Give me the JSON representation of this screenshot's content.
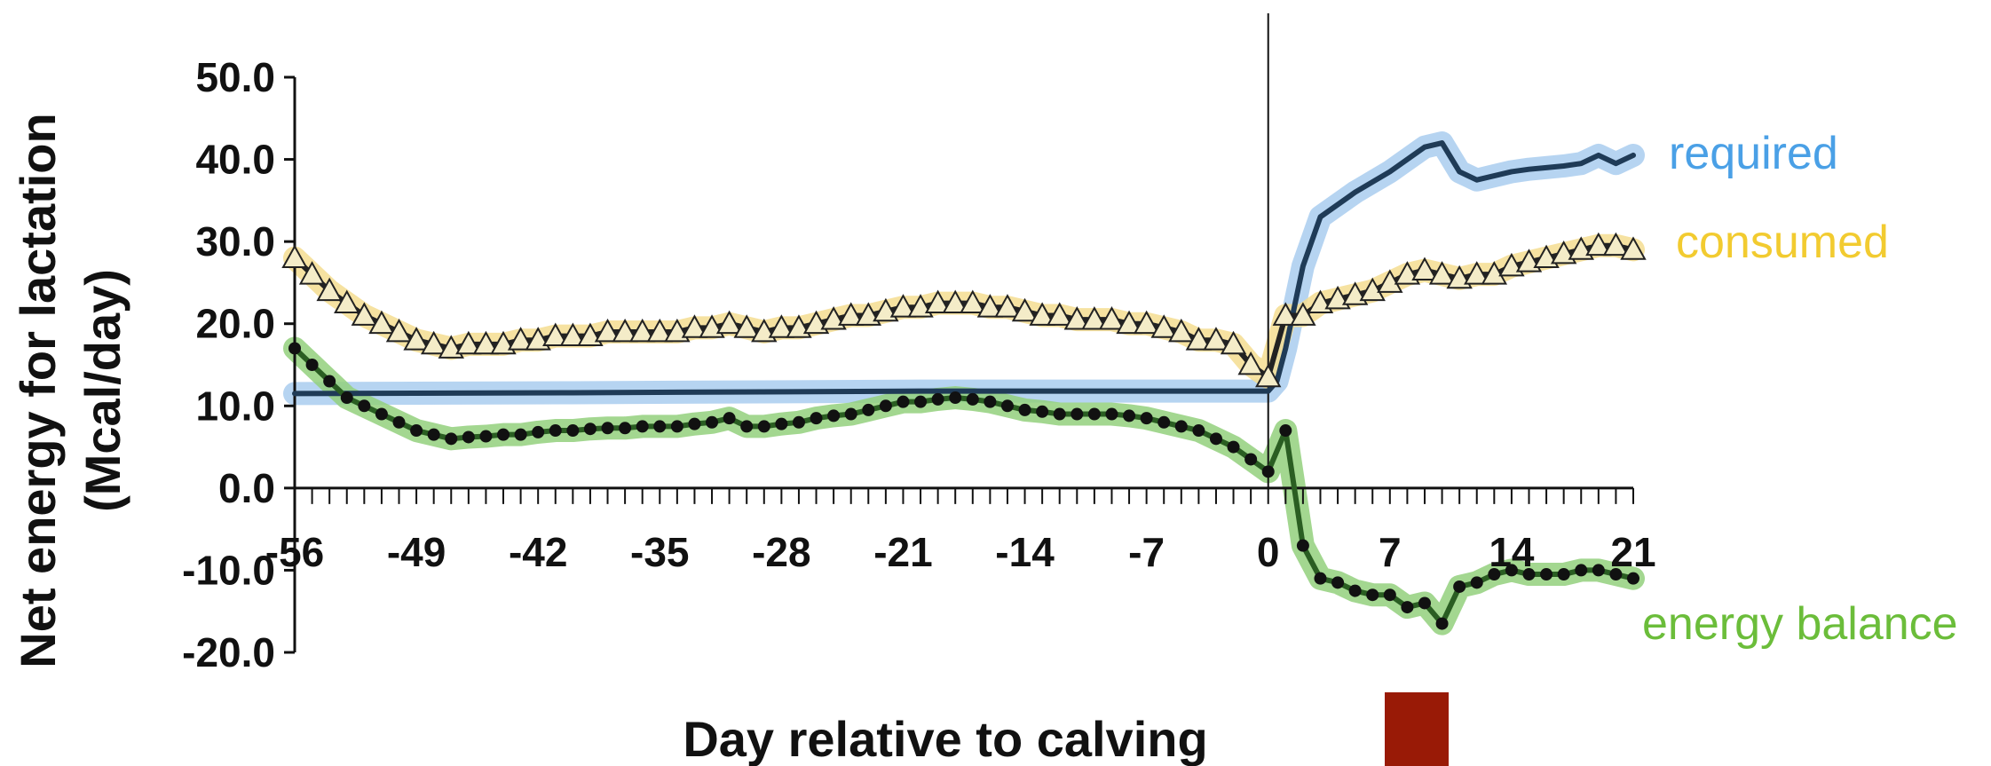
{
  "chart_data": {
    "type": "line",
    "xlabel": "Day relative to calving",
    "ylabel_line1": "Net energy for lactation",
    "ylabel_line2": "(Mcal/day)",
    "xlim": [
      -56,
      21
    ],
    "ylim": [
      -20,
      50
    ],
    "x_ticks": [
      -56,
      -49,
      -42,
      -35,
      -28,
      -21,
      -14,
      -7,
      0,
      7,
      14,
      21
    ],
    "x_tick_labels": [
      "-56",
      "-49",
      "-42",
      "-35",
      "-28",
      "-21",
      "-14",
      "-7",
      "0",
      "7",
      "14",
      "21"
    ],
    "y_ticks": [
      50,
      40,
      30,
      20,
      10,
      0,
      -10,
      -20
    ],
    "y_tick_labels": [
      "50.0",
      "40.0",
      "30.0",
      "20.0",
      "10.0",
      "0.0",
      "-10.0",
      "-20.0"
    ],
    "vline_x": 0,
    "series": [
      {
        "name": "required",
        "color": "#1f3b57",
        "band_color": "#a9cdee",
        "label_color": "#4aa0e6",
        "marker": "none",
        "points": [
          [
            -56,
            11.5
          ],
          [
            -40,
            11.6
          ],
          [
            -20,
            11.8
          ],
          [
            0,
            11.8
          ],
          [
            0.5,
            13
          ],
          [
            1,
            17
          ],
          [
            2,
            27
          ],
          [
            3,
            33
          ],
          [
            5,
            36
          ],
          [
            7,
            38.5
          ],
          [
            8,
            40
          ],
          [
            9,
            41.5
          ],
          [
            10,
            42
          ],
          [
            11,
            38.5
          ],
          [
            12,
            37.5
          ],
          [
            13,
            38
          ],
          [
            14,
            38.5
          ],
          [
            15,
            38.8
          ],
          [
            16,
            39
          ],
          [
            17,
            39.2
          ],
          [
            18,
            39.5
          ],
          [
            19,
            40.5
          ],
          [
            20,
            39.5
          ],
          [
            21,
            40.5
          ]
        ]
      },
      {
        "name": "consumed",
        "color": "#222222",
        "band_color": "#f5dd90",
        "label_color": "#f2cb30",
        "marker": "triangle",
        "marker_fill": "#f4ecc8",
        "points": [
          [
            -56,
            28
          ],
          [
            -55,
            26
          ],
          [
            -54,
            24
          ],
          [
            -53,
            22.5
          ],
          [
            -52,
            21
          ],
          [
            -51,
            20
          ],
          [
            -50,
            19
          ],
          [
            -49,
            18
          ],
          [
            -48,
            17.5
          ],
          [
            -47,
            17
          ],
          [
            -46,
            17.5
          ],
          [
            -45,
            17.5
          ],
          [
            -44,
            17.5
          ],
          [
            -43,
            18
          ],
          [
            -42,
            18
          ],
          [
            -41,
            18.5
          ],
          [
            -40,
            18.5
          ],
          [
            -39,
            18.5
          ],
          [
            -38,
            19
          ],
          [
            -37,
            19
          ],
          [
            -36,
            19
          ],
          [
            -35,
            19
          ],
          [
            -34,
            19
          ],
          [
            -33,
            19.5
          ],
          [
            -32,
            19.5
          ],
          [
            -31,
            20
          ],
          [
            -30,
            19.5
          ],
          [
            -29,
            19
          ],
          [
            -28,
            19.5
          ],
          [
            -27,
            19.5
          ],
          [
            -26,
            20
          ],
          [
            -25,
            20.5
          ],
          [
            -24,
            21
          ],
          [
            -23,
            21
          ],
          [
            -22,
            21.5
          ],
          [
            -21,
            22
          ],
          [
            -20,
            22
          ],
          [
            -19,
            22.5
          ],
          [
            -18,
            22.5
          ],
          [
            -17,
            22.5
          ],
          [
            -16,
            22
          ],
          [
            -15,
            22
          ],
          [
            -14,
            21.5
          ],
          [
            -13,
            21
          ],
          [
            -12,
            21
          ],
          [
            -11,
            20.5
          ],
          [
            -10,
            20.5
          ],
          [
            -9,
            20.5
          ],
          [
            -8,
            20
          ],
          [
            -7,
            20
          ],
          [
            -6,
            19.5
          ],
          [
            -5,
            19
          ],
          [
            -4,
            18
          ],
          [
            -3,
            18
          ],
          [
            -2,
            17.5
          ],
          [
            -1,
            15
          ],
          [
            0,
            13.5
          ],
          [
            1,
            21
          ],
          [
            2,
            21
          ],
          [
            3,
            22.5
          ],
          [
            4,
            23
          ],
          [
            5,
            23.5
          ],
          [
            6,
            24
          ],
          [
            7,
            25
          ],
          [
            8,
            26
          ],
          [
            9,
            26.5
          ],
          [
            10,
            26
          ],
          [
            11,
            25.5
          ],
          [
            12,
            26
          ],
          [
            13,
            26
          ],
          [
            14,
            27
          ],
          [
            15,
            27.5
          ],
          [
            16,
            28
          ],
          [
            17,
            28.5
          ],
          [
            18,
            29
          ],
          [
            19,
            29.5
          ],
          [
            20,
            29.5
          ],
          [
            21,
            29
          ]
        ]
      },
      {
        "name": "energy balance",
        "color": "#2a5e22",
        "band_color": "#93d07c",
        "label_color": "#6bbd3a",
        "marker": "circle",
        "marker_fill": "#111111",
        "points": [
          [
            -56,
            17
          ],
          [
            -55,
            15
          ],
          [
            -54,
            13
          ],
          [
            -53,
            11
          ],
          [
            -52,
            10
          ],
          [
            -51,
            9
          ],
          [
            -50,
            8
          ],
          [
            -49,
            7
          ],
          [
            -48,
            6.5
          ],
          [
            -47,
            6
          ],
          [
            -46,
            6.2
          ],
          [
            -45,
            6.3
          ],
          [
            -44,
            6.5
          ],
          [
            -43,
            6.5
          ],
          [
            -42,
            6.8
          ],
          [
            -41,
            7
          ],
          [
            -40,
            7
          ],
          [
            -39,
            7.2
          ],
          [
            -38,
            7.3
          ],
          [
            -37,
            7.3
          ],
          [
            -36,
            7.5
          ],
          [
            -35,
            7.5
          ],
          [
            -34,
            7.5
          ],
          [
            -33,
            7.8
          ],
          [
            -32,
            8
          ],
          [
            -31,
            8.5
          ],
          [
            -30,
            7.5
          ],
          [
            -29,
            7.5
          ],
          [
            -28,
            7.8
          ],
          [
            -27,
            8
          ],
          [
            -26,
            8.5
          ],
          [
            -25,
            8.8
          ],
          [
            -24,
            9
          ],
          [
            -23,
            9.5
          ],
          [
            -22,
            10
          ],
          [
            -21,
            10.5
          ],
          [
            -20,
            10.5
          ],
          [
            -19,
            10.8
          ],
          [
            -18,
            11
          ],
          [
            -17,
            10.8
          ],
          [
            -16,
            10.5
          ],
          [
            -15,
            10
          ],
          [
            -14,
            9.5
          ],
          [
            -13,
            9.3
          ],
          [
            -12,
            9
          ],
          [
            -11,
            9
          ],
          [
            -10,
            9
          ],
          [
            -9,
            9
          ],
          [
            -8,
            8.8
          ],
          [
            -7,
            8.5
          ],
          [
            -6,
            8
          ],
          [
            -5,
            7.5
          ],
          [
            -4,
            7
          ],
          [
            -3,
            6
          ],
          [
            -2,
            5
          ],
          [
            -1,
            3.5
          ],
          [
            0,
            2
          ],
          [
            1,
            7
          ],
          [
            2,
            -7
          ],
          [
            3,
            -11
          ],
          [
            4,
            -11.5
          ],
          [
            5,
            -12.5
          ],
          [
            6,
            -13
          ],
          [
            7,
            -13
          ],
          [
            8,
            -14.5
          ],
          [
            9,
            -14
          ],
          [
            10,
            -16.5
          ],
          [
            11,
            -12
          ],
          [
            12,
            -11.5
          ],
          [
            13,
            -10.5
          ],
          [
            14,
            -10
          ],
          [
            15,
            -10.5
          ],
          [
            16,
            -10.5
          ],
          [
            17,
            -10.5
          ],
          [
            18,
            -10
          ],
          [
            19,
            -10
          ],
          [
            20,
            -10.5
          ],
          [
            21,
            -11
          ]
        ]
      }
    ]
  },
  "marker_box": {
    "color": "#991a06"
  }
}
